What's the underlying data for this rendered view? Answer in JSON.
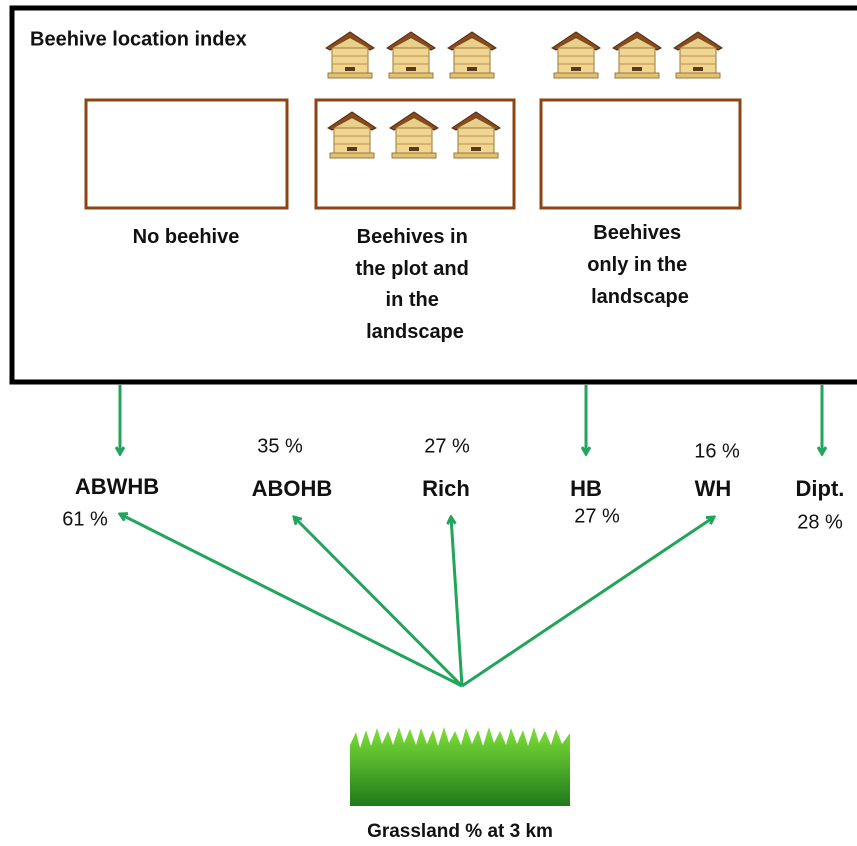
{
  "title": "Beehive location index",
  "boxes": [
    {
      "label": [
        "No beehive"
      ]
    },
    {
      "label": [
        "Beehives in",
        "the plot and",
        "in the",
        "landscape"
      ]
    },
    {
      "label": [
        "Beehives",
        "only in the",
        "landscape"
      ]
    }
  ],
  "nodes": [
    {
      "label": "ABWHB",
      "percent": "61 %"
    },
    {
      "label": "ABOHB",
      "percent": "35 %"
    },
    {
      "label": "Rich",
      "percent": "27 %"
    },
    {
      "label": "HB",
      "percent": "27 %"
    },
    {
      "label": "WH",
      "percent": "16 %"
    },
    {
      "label": "Dipt.",
      "percent": "28 %"
    }
  ],
  "source": {
    "label": "Grassland % at 3 km"
  }
}
